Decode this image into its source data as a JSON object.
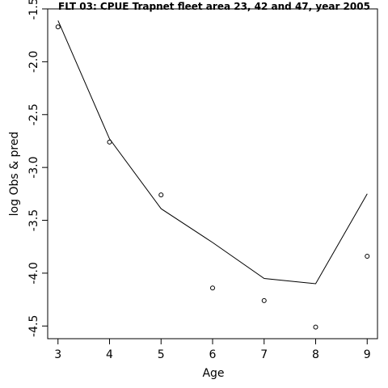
{
  "chart_data": {
    "type": "line",
    "title": "FLT 03: CPUE Trapnet fleet area 23, 42 and 47, year 2005",
    "xlabel": "Age",
    "ylabel": "log Obs & pred",
    "xlim": [
      2.8,
      9.2
    ],
    "ylim": [
      -4.62,
      -1.5
    ],
    "x_ticks": [
      3,
      4,
      5,
      6,
      7,
      8,
      9
    ],
    "y_ticks": [
      -1.5,
      -2.0,
      -2.5,
      -3.0,
      -3.5,
      -4.0,
      -4.5
    ],
    "x_tick_labels": [
      "3",
      "4",
      "5",
      "6",
      "7",
      "8",
      "9"
    ],
    "y_tick_labels": [
      "-1.5",
      "-2.0",
      "-2.5",
      "-3.0",
      "-3.5",
      "-4.0",
      "-4.5"
    ],
    "series": [
      {
        "style": "points",
        "x": [
          3,
          4,
          5,
          6,
          7,
          8,
          9
        ],
        "values": [
          -1.67,
          -2.76,
          -3.26,
          -4.14,
          -4.26,
          -4.51,
          -3.84
        ]
      },
      {
        "style": "line",
        "x": [
          3,
          4,
          5,
          6,
          7,
          8,
          9
        ],
        "values": [
          -1.61,
          -2.73,
          -3.39,
          -3.71,
          -4.05,
          -4.1,
          -3.25
        ]
      }
    ],
    "grid": false,
    "colors": {
      "line": "#000000",
      "points": "#000000",
      "background": "#ffffff"
    }
  }
}
